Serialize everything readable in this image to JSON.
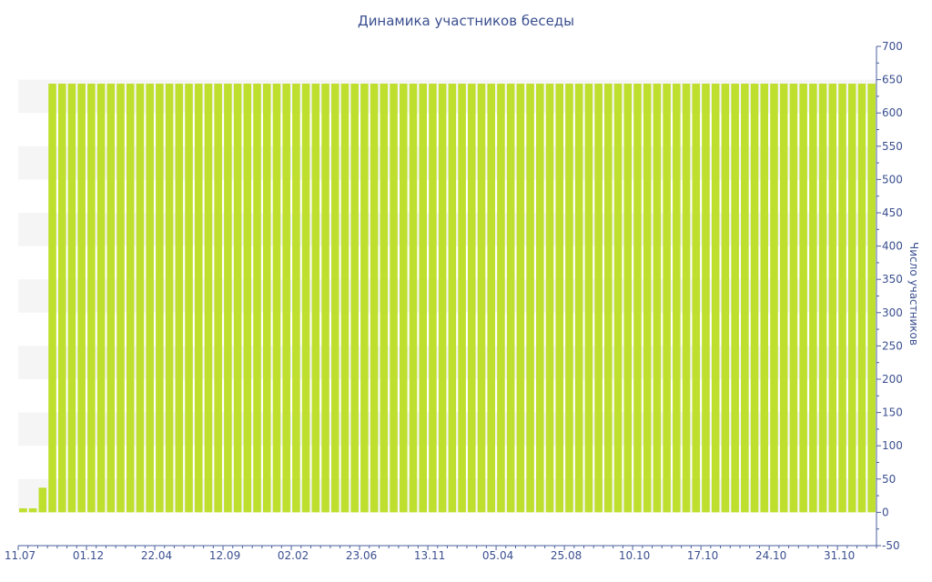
{
  "chart_data": {
    "type": "bar",
    "title": "Динамика участников беседы",
    "ylabel": "Число участников",
    "xlabel": "",
    "ylim": [
      -50,
      700
    ],
    "y_ticks": [
      -50,
      0,
      50,
      100,
      150,
      200,
      250,
      300,
      350,
      400,
      450,
      500,
      550,
      600,
      650,
      700
    ],
    "y_axis_position": "right",
    "x_tick_labels": [
      "11.07",
      "01.12",
      "22.04",
      "12.09",
      "02.02",
      "23.06",
      "13.11",
      "05.04",
      "25.08",
      "10.10",
      "17.10",
      "24.10",
      "31.10"
    ],
    "series": [
      {
        "values": [
          6,
          6,
          37,
          644,
          644,
          644,
          644,
          644,
          644,
          644,
          644,
          644,
          644,
          644,
          644,
          644,
          644,
          644,
          644,
          644,
          644,
          644,
          644,
          644,
          644,
          644,
          644,
          644,
          644,
          644,
          644,
          644,
          644,
          644,
          644,
          644,
          644,
          644,
          644,
          644,
          644,
          644,
          644,
          644,
          644,
          644,
          644,
          644,
          644,
          644,
          644,
          644,
          644,
          644,
          644,
          644,
          644,
          644,
          644,
          644,
          644,
          644,
          644,
          644,
          644,
          644,
          644,
          644,
          644,
          644,
          644,
          644,
          644,
          644,
          644,
          644,
          644,
          644,
          644,
          644,
          644,
          644,
          644,
          644,
          644,
          644,
          644,
          644
        ]
      }
    ],
    "colors": {
      "bar": "#bedf2e",
      "axis": "#4a5f9f",
      "text": "#3a4f8f",
      "band": "#f5f5f5"
    },
    "grid": "alternating-bands"
  }
}
